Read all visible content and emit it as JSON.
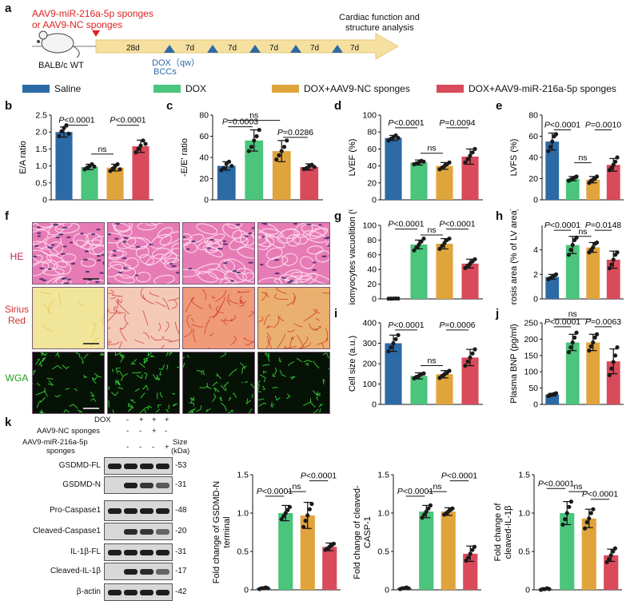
{
  "colors": {
    "saline": "#2c6aa6",
    "dox": "#4bc47c",
    "nc": "#e0a43c",
    "mir": "#d94a5a",
    "arrow": "#f5e0a0",
    "accent": "#2c6aa6",
    "red": "#d22"
  },
  "panel_labels": [
    "a",
    "b",
    "c",
    "d",
    "e",
    "f",
    "g",
    "h",
    "i",
    "j",
    "k"
  ],
  "timeline": {
    "treatment": "AAV9-miR-216a-5p sponges",
    "treatment2": "or AAV9-NC sponges",
    "mouse": "BALB/c WT",
    "intervals": [
      "28d",
      "7d",
      "7d",
      "7d",
      "7d",
      "7d"
    ],
    "dox1": "DOX（qw）",
    "dox2": "BCCs",
    "end1": "Cardiac function and",
    "end2": "structure analysis"
  },
  "legend": [
    "Saline",
    "DOX",
    "DOX+AAV9-NC sponges",
    "DOX+AAV9-miR-216a-5p sponges"
  ],
  "histology": {
    "rows": [
      "HE",
      "Sirius Red",
      "WGA"
    ],
    "row1_color": "#c02050",
    "row2_color": "#d03030",
    "row3_color": "#20a020"
  },
  "western": {
    "conditions": [
      {
        "label": "DOX",
        "marks": [
          "-",
          "+",
          "+",
          "+"
        ]
      },
      {
        "label": "AAV9-NC sponges",
        "marks": [
          "-",
          "-",
          "+",
          "-"
        ]
      },
      {
        "label": "AAV9-miR-216a-5p",
        "label2": "sponges",
        "marks": [
          "-",
          "-",
          "-",
          "+"
        ]
      }
    ],
    "size_header": "Size",
    "size_unit": "(kDa)",
    "blots": [
      {
        "name": "GSDMD-FL",
        "kda": "-53"
      },
      {
        "name": "GSDMD-N",
        "kda": "-31"
      },
      {
        "name": "Pro-Caspase1",
        "kda": "-48"
      },
      {
        "name": "Cleaved-Caspase1",
        "kda": "-20"
      },
      {
        "name": "IL-1β-FL",
        "kda": "-31"
      },
      {
        "name": "Cleaved-IL-1β",
        "kda": "-17"
      },
      {
        "name": "β-actin",
        "kda": "-42"
      }
    ]
  },
  "chart_data": [
    {
      "id": "b",
      "type": "bar",
      "ylabel": "E/A ratio",
      "ylim": [
        0,
        2.5
      ],
      "ticks": [
        "0",
        "0.5",
        "1.0",
        "1.5",
        "2.0",
        "2.5"
      ],
      "tickvals": [
        0,
        0.5,
        1,
        1.5,
        2,
        2.5
      ],
      "values": [
        2.0,
        0.97,
        0.95,
        1.58
      ],
      "errors": [
        0.15,
        0.08,
        0.1,
        0.18
      ],
      "points": [
        [
          1.88,
          2.02,
          2.12,
          2.2,
          1.95
        ],
        [
          0.9,
          0.95,
          1.0,
          1.05,
          0.98
        ],
        [
          0.85,
          0.92,
          1.0,
          1.05,
          0.9
        ],
        [
          1.4,
          1.5,
          1.6,
          1.75,
          1.65
        ]
      ],
      "brackets": [
        {
          "from": 0,
          "to": 1,
          "label": "P<0.0001",
          "level": 2.2
        },
        {
          "from": 1,
          "to": 2,
          "label": "ns",
          "level": 1.35
        },
        {
          "from": 2,
          "to": 3,
          "label": "P<0.0001",
          "level": 2.2
        }
      ]
    },
    {
      "id": "c",
      "type": "bar",
      "ylabel": "-E/E' ratio",
      "ylim": [
        0,
        80
      ],
      "ticks": [
        "0",
        "20",
        "40",
        "60",
        "80"
      ],
      "tickvals": [
        0,
        20,
        40,
        60,
        80
      ],
      "values": [
        32,
        56,
        46,
        31
      ],
      "errors": [
        4,
        10,
        10,
        3
      ],
      "points": [
        [
          28,
          30,
          34,
          36,
          32
        ],
        [
          46,
          50,
          56,
          60,
          66
        ],
        [
          38,
          42,
          46,
          50,
          56
        ],
        [
          29,
          30,
          32,
          33,
          31
        ]
      ],
      "brackets": [
        {
          "from": 0,
          "to": 1,
          "label": "P=0.0003",
          "level": 69
        },
        {
          "from": 0,
          "to": 2,
          "label": "ns",
          "level": 75
        },
        {
          "from": 2,
          "to": 3,
          "label": "P=0.0286",
          "level": 59
        }
      ]
    },
    {
      "id": "d",
      "type": "bar",
      "ylabel": "LVEF (%)",
      "ylim": [
        0,
        100
      ],
      "ticks": [
        "0",
        "20",
        "40",
        "60",
        "80",
        "100"
      ],
      "tickvals": [
        0,
        20,
        40,
        60,
        80,
        100
      ],
      "values": [
        73,
        44,
        40,
        51
      ],
      "errors": [
        3,
        3,
        4,
        9
      ],
      "points": [
        [
          70,
          72,
          74,
          76,
          73
        ],
        [
          42,
          43,
          44,
          46,
          45
        ],
        [
          36,
          38,
          40,
          42,
          44
        ],
        [
          44,
          48,
          52,
          56,
          60
        ]
      ],
      "brackets": [
        {
          "from": 0,
          "to": 1,
          "label": "P<0.0001",
          "level": 85
        },
        {
          "from": 1,
          "to": 2,
          "label": "ns",
          "level": 55
        },
        {
          "from": 2,
          "to": 3,
          "label": "P=0.0094",
          "level": 85
        }
      ]
    },
    {
      "id": "e",
      "type": "bar",
      "ylabel": "LVFS (%)",
      "ylim": [
        0,
        80
      ],
      "ticks": [
        "0",
        "20",
        "40",
        "60",
        "80"
      ],
      "tickvals": [
        0,
        20,
        40,
        60,
        80
      ],
      "values": [
        55,
        20,
        19,
        33
      ],
      "errors": [
        8,
        2,
        3,
        6
      ],
      "points": [
        [
          46,
          50,
          55,
          60,
          62
        ],
        [
          18,
          19,
          20,
          21,
          22
        ],
        [
          16,
          18,
          19,
          20,
          22
        ],
        [
          28,
          30,
          33,
          36,
          40
        ]
      ],
      "brackets": [
        {
          "from": 0,
          "to": 1,
          "label": "P<0.0001",
          "level": 66
        },
        {
          "from": 1,
          "to": 2,
          "label": "ns",
          "level": 35
        },
        {
          "from": 2,
          "to": 3,
          "label": "P=0.0010",
          "level": 66
        }
      ]
    },
    {
      "id": "g",
      "type": "bar",
      "ylabel": "Cardiomyocytes vacuolition (%)",
      "ylim": [
        0,
        100
      ],
      "ticks": [
        "0",
        "20",
        "40",
        "60",
        "80",
        "100"
      ],
      "tickvals": [
        0,
        20,
        40,
        60,
        80,
        100
      ],
      "values": [
        0.5,
        74,
        75,
        48
      ],
      "errors": [
        0.5,
        6,
        7,
        6
      ],
      "points": [
        [
          0.3,
          0.4,
          0.5,
          0.6,
          0.5
        ],
        [
          66,
          70,
          74,
          78,
          82
        ],
        [
          68,
          72,
          76,
          80,
          82
        ],
        [
          42,
          45,
          48,
          51,
          54
        ]
      ],
      "brackets": [
        {
          "from": 0,
          "to": 1,
          "label": "P<0.0001",
          "level": 95
        },
        {
          "from": 1,
          "to": 2,
          "label": "ns",
          "level": 87
        },
        {
          "from": 2,
          "to": 3,
          "label": "P<0.0001",
          "level": 95
        }
      ]
    },
    {
      "id": "h",
      "type": "bar",
      "ylabel": "Fibrosis area (% of LV area)",
      "ylim": [
        0,
        6
      ],
      "ticks": [
        "0",
        "2",
        "4"
      ],
      "tickvals": [
        0,
        2,
        4
      ],
      "values": [
        1.8,
        4.4,
        4.2,
        3.2
      ],
      "errors": [
        0.2,
        0.7,
        0.4,
        0.7
      ],
      "points": [
        [
          1.6,
          1.7,
          1.8,
          1.9,
          2.0
        ],
        [
          3.6,
          4.0,
          4.4,
          4.8,
          5.0
        ],
        [
          3.8,
          4.0,
          4.2,
          4.5,
          4.6
        ],
        [
          2.5,
          2.8,
          3.2,
          3.6,
          3.8
        ]
      ],
      "brackets": [
        {
          "from": 0,
          "to": 1,
          "label": "P<0.0001",
          "level": 5.6
        },
        {
          "from": 1,
          "to": 2,
          "label": "ns",
          "level": 5.1
        },
        {
          "from": 2,
          "to": 3,
          "label": "P=0.0148",
          "level": 5.6
        }
      ]
    },
    {
      "id": "i",
      "type": "bar",
      "ylabel": "Cell size (a.u.)",
      "ylim": [
        0,
        400
      ],
      "ticks": [
        "0",
        "100",
        "200",
        "300",
        "400"
      ],
      "tickvals": [
        0,
        100,
        200,
        300,
        400
      ],
      "values": [
        300,
        140,
        148,
        230
      ],
      "errors": [
        40,
        15,
        18,
        40
      ],
      "points": [
        [
          260,
          280,
          300,
          320,
          340
        ],
        [
          128,
          135,
          140,
          148,
          152
        ],
        [
          130,
          140,
          148,
          155,
          165
        ],
        [
          190,
          210,
          230,
          250,
          270
        ]
      ],
      "brackets": [
        {
          "from": 0,
          "to": 1,
          "label": "P<0.0001",
          "level": 365
        },
        {
          "from": 1,
          "to": 2,
          "label": "ns",
          "level": 190
        },
        {
          "from": 2,
          "to": 3,
          "label": "P=0.0006",
          "level": 365
        }
      ]
    },
    {
      "id": "j",
      "type": "bar",
      "ylabel": "Plasma BNP (pg/ml)",
      "ylim": [
        0,
        250
      ],
      "ticks": [
        "0",
        "50",
        "100",
        "150",
        "200",
        "250"
      ],
      "tickvals": [
        0,
        50,
        100,
        150,
        200,
        250
      ],
      "values": [
        30,
        190,
        190,
        132
      ],
      "errors": [
        4,
        25,
        25,
        38
      ],
      "points": [
        [
          26,
          28,
          30,
          32,
          34
        ],
        [
          160,
          175,
          190,
          205,
          220
        ],
        [
          165,
          178,
          190,
          205,
          215
        ],
        [
          90,
          110,
          130,
          150,
          175
        ]
      ],
      "brackets": [
        {
          "from": 0,
          "to": 1,
          "label": "P<0.0001",
          "level": 238
        },
        {
          "from": 0,
          "to": 2,
          "label": "ns",
          "level": 262
        },
        {
          "from": 2,
          "to": 3,
          "label": "P=0.0063",
          "level": 238
        }
      ]
    },
    {
      "id": "k1",
      "type": "bar",
      "ylabel": "Fold change of  GSDMD-N",
      "ylabel2": "terminal",
      "ylim": [
        0,
        1.5
      ],
      "ticks": [
        "0",
        "0.5",
        "1.0",
        "1.5"
      ],
      "tickvals": [
        0,
        0.5,
        1,
        1.5
      ],
      "values": [
        0.02,
        1.0,
        0.97,
        0.56
      ],
      "errors": [
        0.01,
        0.1,
        0.17,
        0.05
      ],
      "points": [
        [
          0.01,
          0.02,
          0.02,
          0.03,
          0.02
        ],
        [
          0.92,
          0.96,
          1.0,
          1.04,
          1.08
        ],
        [
          0.82,
          0.9,
          0.97,
          1.05,
          1.12
        ],
        [
          0.52,
          0.54,
          0.56,
          0.58,
          0.6
        ]
      ],
      "brackets": [
        {
          "from": 0,
          "to": 1,
          "label": "P<0.0001",
          "level": 1.22
        },
        {
          "from": 1,
          "to": 2,
          "label": "ns",
          "level": 1.28
        },
        {
          "from": 2,
          "to": 3,
          "label": "P<0.0001",
          "level": 1.42
        }
      ]
    },
    {
      "id": "k2",
      "type": "bar",
      "ylabel": "Fold change of cleaved-",
      "ylabel2": "CASP-1",
      "ylim": [
        0,
        1.5
      ],
      "ticks": [
        "0",
        "0.5",
        "1.0",
        "1.5"
      ],
      "tickvals": [
        0,
        0.5,
        1,
        1.5
      ],
      "values": [
        0.02,
        1.02,
        1.02,
        0.47
      ],
      "errors": [
        0.01,
        0.08,
        0.05,
        0.1
      ],
      "points": [
        [
          0.01,
          0.02,
          0.02,
          0.03,
          0.02
        ],
        [
          0.94,
          0.98,
          1.02,
          1.06,
          1.1
        ],
        [
          0.98,
          1.0,
          1.02,
          1.04,
          1.06
        ],
        [
          0.38,
          0.42,
          0.47,
          0.52,
          0.56
        ]
      ],
      "brackets": [
        {
          "from": 0,
          "to": 1,
          "label": "P<0.0001",
          "level": 1.22
        },
        {
          "from": 1,
          "to": 2,
          "label": "ns",
          "level": 1.28
        },
        {
          "from": 2,
          "to": 3,
          "label": "P<0.0001",
          "level": 1.42
        }
      ]
    },
    {
      "id": "k3",
      "type": "bar",
      "ylabel": "Fold change of",
      "ylabel2": "cleaved-IL-1β",
      "ylim": [
        0,
        1.5
      ],
      "ticks": [
        "0",
        "0.5",
        "1.0",
        "1.5"
      ],
      "tickvals": [
        0,
        0.5,
        1,
        1.5
      ],
      "values": [
        0.01,
        1.0,
        0.93,
        0.45
      ],
      "errors": [
        0.01,
        0.15,
        0.12,
        0.08
      ],
      "points": [
        [
          0.0,
          0.01,
          0.01,
          0.02,
          0.01
        ],
        [
          0.85,
          0.92,
          1.0,
          1.08,
          1.15
        ],
        [
          0.8,
          0.88,
          0.93,
          1.0,
          1.05
        ],
        [
          0.36,
          0.4,
          0.45,
          0.5,
          0.54
        ]
      ],
      "brackets": [
        {
          "from": 0,
          "to": 1,
          "label": "P<0.0001",
          "level": 1.32
        },
        {
          "from": 1,
          "to": 2,
          "label": "ns",
          "level": 1.28
        },
        {
          "from": 2,
          "to": 3,
          "label": "P<0.0001",
          "level": 1.18
        }
      ]
    }
  ]
}
